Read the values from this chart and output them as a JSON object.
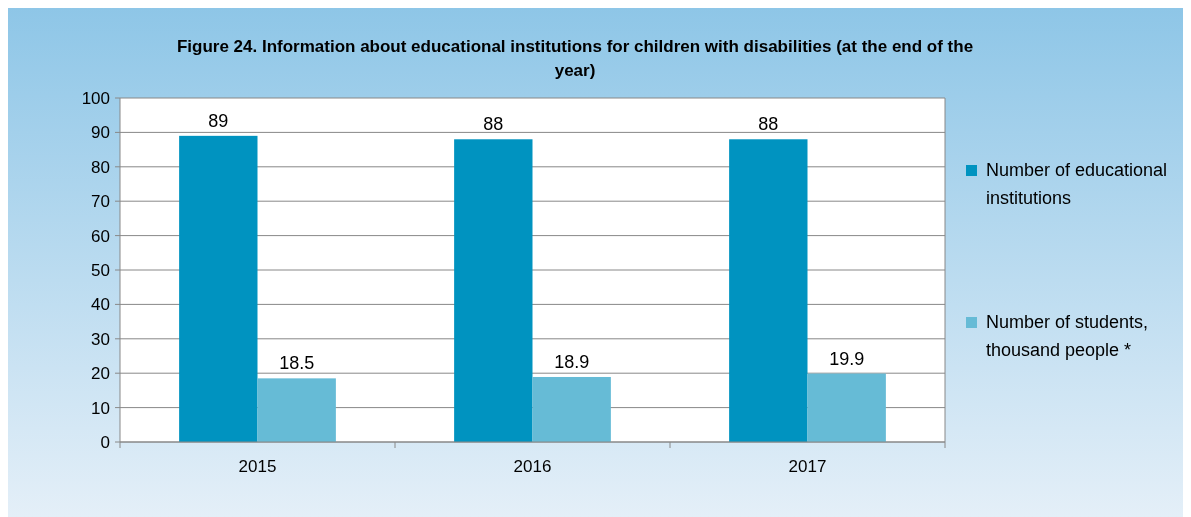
{
  "chart_data": {
    "type": "bar",
    "title": "Figure 24. Information about educational institutions for children with disabilities (at the end of the year)",
    "categories": [
      "2015",
      "2016",
      "2017"
    ],
    "series": [
      {
        "name": "Number of educational institutions",
        "color": "#0093c0",
        "values": [
          89,
          88,
          88
        ]
      },
      {
        "name": "Number of students, thousand people *",
        "color": "#66bbd6",
        "values": [
          18.5,
          18.9,
          19.9
        ]
      }
    ],
    "ylim": [
      0,
      100
    ],
    "yticks": [
      0,
      10,
      20,
      30,
      40,
      50,
      60,
      70,
      80,
      90,
      100
    ],
    "grid": "y",
    "legend": "right",
    "data_labels": true
  }
}
